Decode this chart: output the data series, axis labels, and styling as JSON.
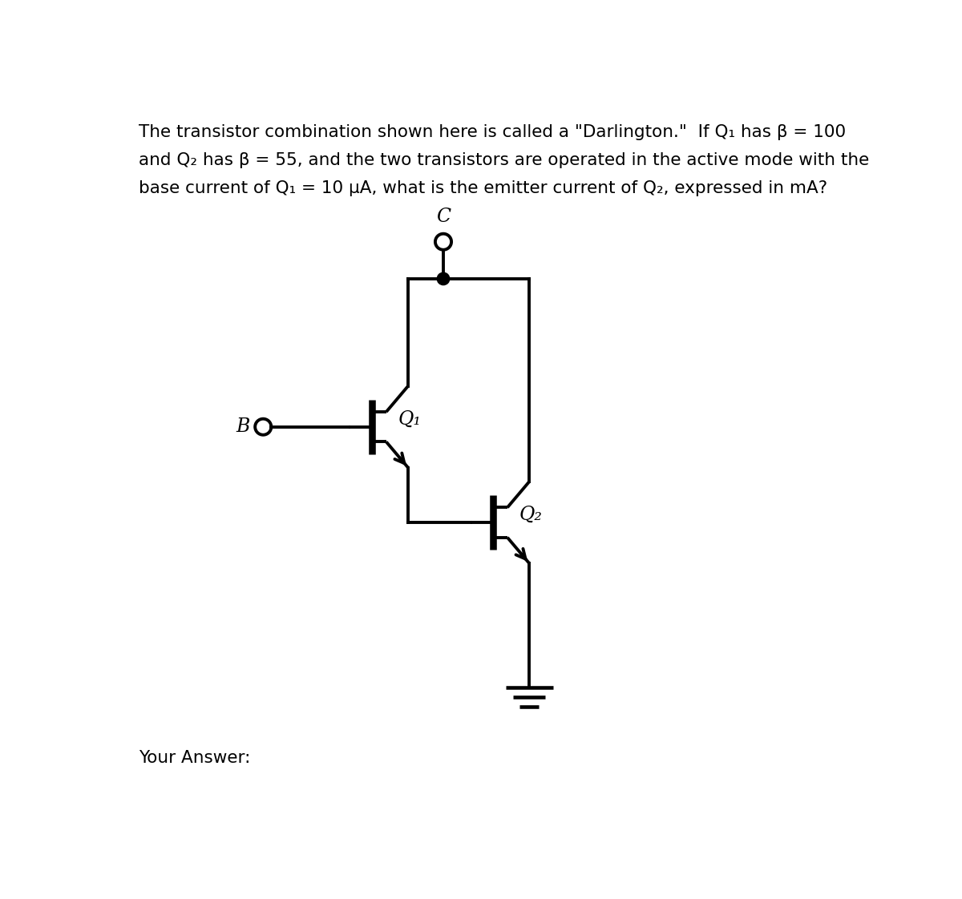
{
  "title_line1": "The transistor combination shown here is called a \"Darlington.\"  If Q₁ has β = 100",
  "title_line2": "and Q₂ has β = 55, and the two transistors are operated in the active mode with the",
  "title_line3": "base current of Q₁ = 10 μA, what is the emitter current of Q₂, expressed in mA?",
  "label_B": "B",
  "label_C": "C",
  "label_Q1": "Q₁",
  "label_Q2": "Q₂",
  "footer_text": "Your Answer:",
  "bg_color": "#ffffff",
  "line_color": "#000000",
  "linewidth": 2.8,
  "title_fontsize": 15.5,
  "label_fontsize": 17
}
